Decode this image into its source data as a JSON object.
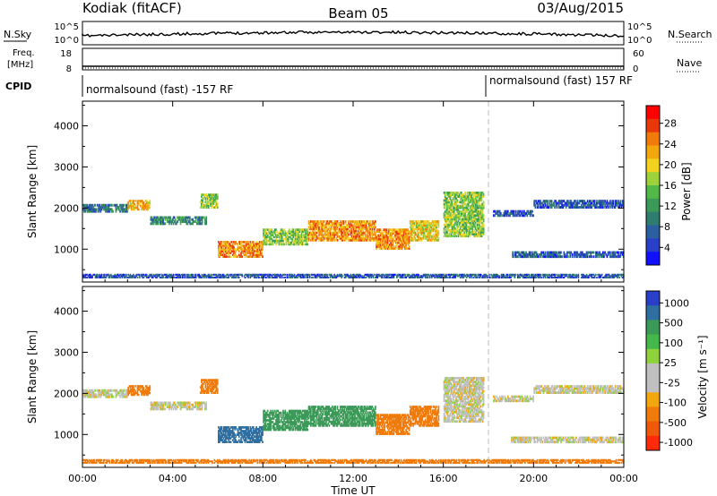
{
  "header": {
    "title": "Kodiak (fitACF)",
    "beam": "Beam 05",
    "date": "03/Aug/2015"
  },
  "noise_panel": {
    "left_label": "N.Sky",
    "right_label": "N.Search",
    "axis_ticks": [
      "10^5",
      "10^0"
    ]
  },
  "freq_panel": {
    "left_label_1": "Freq.",
    "left_label_2": "[MHz]",
    "right_label": "Nave",
    "left_ticks": [
      "18",
      "8"
    ],
    "right_ticks": [
      "60",
      "0"
    ]
  },
  "cpid": {
    "label": "CPID",
    "segments": [
      {
        "text": "normalsound (fast) -157 RF",
        "start_h": 0
      },
      {
        "text": "normalsound (fast) 157 RF",
        "start_h": 18
      }
    ]
  },
  "chart_data": [
    {
      "type": "heatmap",
      "name": "power",
      "xlabel": "Time UT",
      "ylabel": "Slant Range [km]",
      "xlim": [
        0,
        24
      ],
      "ylim": [
        200,
        4600
      ],
      "y_ticks": [
        1000,
        2000,
        3000,
        4000
      ],
      "x_ticks": [
        "00:00",
        "04:00",
        "08:00",
        "12:00",
        "16:00",
        "20:00",
        "00:00"
      ],
      "colorbar": {
        "label": "Power [dB]",
        "ticks": [
          28,
          24,
          20,
          16,
          12,
          8,
          4
        ],
        "colors": [
          "#ff0000",
          "#e8380a",
          "#f07b0a",
          "#f2a70e",
          "#f2d21e",
          "#9ed23c",
          "#52b948",
          "#3c9a58",
          "#2e7d6e",
          "#2c5fa0",
          "#2a3fc8",
          "#1010ff"
        ]
      },
      "bands": [
        {
          "t0": 0.0,
          "t1": 2.0,
          "r0": 1900,
          "r1": 2100,
          "level": 8
        },
        {
          "t0": 2.0,
          "t1": 3.0,
          "r0": 1950,
          "r1": 2200,
          "level": 22
        },
        {
          "t0": 3.0,
          "t1": 5.5,
          "r0": 1600,
          "r1": 1800,
          "level": 10
        },
        {
          "t0": 5.2,
          "t1": 6.0,
          "r0": 2000,
          "r1": 2350,
          "level": 16
        },
        {
          "t0": 6.0,
          "t1": 8.0,
          "r0": 800,
          "r1": 1200,
          "level": 24
        },
        {
          "t0": 8.0,
          "t1": 10.0,
          "r0": 1100,
          "r1": 1500,
          "level": 16
        },
        {
          "t0": 10.0,
          "t1": 13.0,
          "r0": 1200,
          "r1": 1700,
          "level": 24
        },
        {
          "t0": 13.0,
          "t1": 14.5,
          "r0": 1000,
          "r1": 1500,
          "level": 24
        },
        {
          "t0": 14.5,
          "t1": 15.8,
          "r0": 1200,
          "r1": 1700,
          "level": 20
        },
        {
          "t0": 16.0,
          "t1": 17.8,
          "r0": 1300,
          "r1": 2400,
          "level": 16
        },
        {
          "t0": 18.2,
          "t1": 20.0,
          "r0": 1800,
          "r1": 1950,
          "level": 6
        },
        {
          "t0": 20.0,
          "t1": 24.0,
          "r0": 2000,
          "r1": 2200,
          "level": 6
        },
        {
          "t0": 19.0,
          "t1": 24.0,
          "r0": 800,
          "r1": 950,
          "level": 6
        },
        {
          "t0": 0.0,
          "t1": 24.0,
          "r0": 300,
          "r1": 400,
          "level": 6
        }
      ]
    },
    {
      "type": "heatmap",
      "name": "velocity",
      "xlabel": "Time UT",
      "ylabel": "Slant Range [km]",
      "xlim": [
        0,
        24
      ],
      "ylim": [
        200,
        4600
      ],
      "y_ticks": [
        1000,
        2000,
        3000,
        4000
      ],
      "x_ticks": [
        "00:00",
        "04:00",
        "08:00",
        "12:00",
        "16:00",
        "20:00",
        "00:00"
      ],
      "colorbar": {
        "label": "Velocity [m s⁻¹]",
        "ticks": [
          "1000",
          "500",
          "100",
          "25",
          "-25",
          "-100",
          "-500",
          "-1000"
        ],
        "colors": [
          "#2a3fc8",
          "#2e6ea0",
          "#3c9a58",
          "#44b84a",
          "#8fd23c",
          "#c0c0c0",
          "#c0c0c0",
          "#f2a70e",
          "#f07b0a",
          "#ee5a0a",
          "#ff2a0a"
        ]
      },
      "bands": [
        {
          "t0": 0.0,
          "t1": 2.0,
          "r0": 1900,
          "r1": 2100,
          "level": 0
        },
        {
          "t0": 2.0,
          "t1": 3.0,
          "r0": 1950,
          "r1": 2200,
          "level": -150
        },
        {
          "t0": 3.0,
          "t1": 5.5,
          "r0": 1600,
          "r1": 1800,
          "level": 0
        },
        {
          "t0": 5.2,
          "t1": 6.0,
          "r0": 2000,
          "r1": 2350,
          "level": -150
        },
        {
          "t0": 6.0,
          "t1": 8.0,
          "r0": 800,
          "r1": 1200,
          "level": 300
        },
        {
          "t0": 8.0,
          "t1": 10.0,
          "r0": 1100,
          "r1": 1600,
          "level": 150
        },
        {
          "t0": 10.0,
          "t1": 13.0,
          "r0": 1200,
          "r1": 1700,
          "level": 150
        },
        {
          "t0": 13.0,
          "t1": 14.5,
          "r0": 1000,
          "r1": 1500,
          "level": -150
        },
        {
          "t0": 14.5,
          "t1": 15.8,
          "r0": 1200,
          "r1": 1700,
          "level": -150
        },
        {
          "t0": 16.0,
          "t1": 17.8,
          "r0": 1300,
          "r1": 2400,
          "level": 0
        },
        {
          "t0": 18.2,
          "t1": 20.0,
          "r0": 1800,
          "r1": 1950,
          "level": 0
        },
        {
          "t0": 20.0,
          "t1": 24.0,
          "r0": 2000,
          "r1": 2200,
          "level": 0
        },
        {
          "t0": 19.0,
          "t1": 24.0,
          "r0": 800,
          "r1": 950,
          "level": 0
        },
        {
          "t0": 0.0,
          "t1": 24.0,
          "r0": 300,
          "r1": 400,
          "level": -150
        }
      ]
    }
  ]
}
